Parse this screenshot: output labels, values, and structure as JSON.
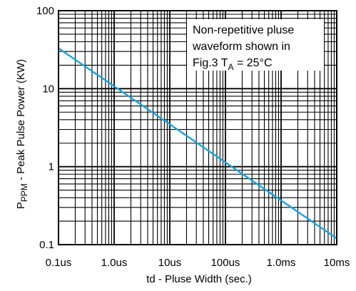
{
  "chart_data": {
    "type": "line",
    "title": "",
    "xlabel": "td - Pluse Width (sec.)",
    "ylabel_prefix": "P",
    "ylabel_sub": "PPM",
    "ylabel_rest": " - Peak Pulse Power (KW)",
    "x_scale": "log",
    "y_scale": "log",
    "xlim": [
      1e-07,
      0.01
    ],
    "ylim": [
      0.1,
      100
    ],
    "x_ticks": [
      {
        "value": 1e-07,
        "label": "0.1us"
      },
      {
        "value": 1e-06,
        "label": "1.0us"
      },
      {
        "value": 1e-05,
        "label": "10us"
      },
      {
        "value": 0.0001,
        "label": "100us"
      },
      {
        "value": 0.001,
        "label": "1.0ms"
      },
      {
        "value": 0.01,
        "label": "10ms"
      }
    ],
    "y_ticks": [
      {
        "value": 0.1,
        "label": "0.1"
      },
      {
        "value": 1,
        "label": "1"
      },
      {
        "value": 10,
        "label": "10"
      },
      {
        "value": 100,
        "label": "100"
      }
    ],
    "grid": true,
    "series": [
      {
        "color": "#1aa3d9",
        "x": [
          1e-07,
          0.01
        ],
        "y": [
          33,
          0.12
        ]
      }
    ],
    "annotation": {
      "line1": "Non-repetitive pluse",
      "line2": "waveform shown in",
      "line3_pre": "Fig.3 T",
      "line3_sub": "A",
      "line3_post": " = 25°C"
    }
  }
}
